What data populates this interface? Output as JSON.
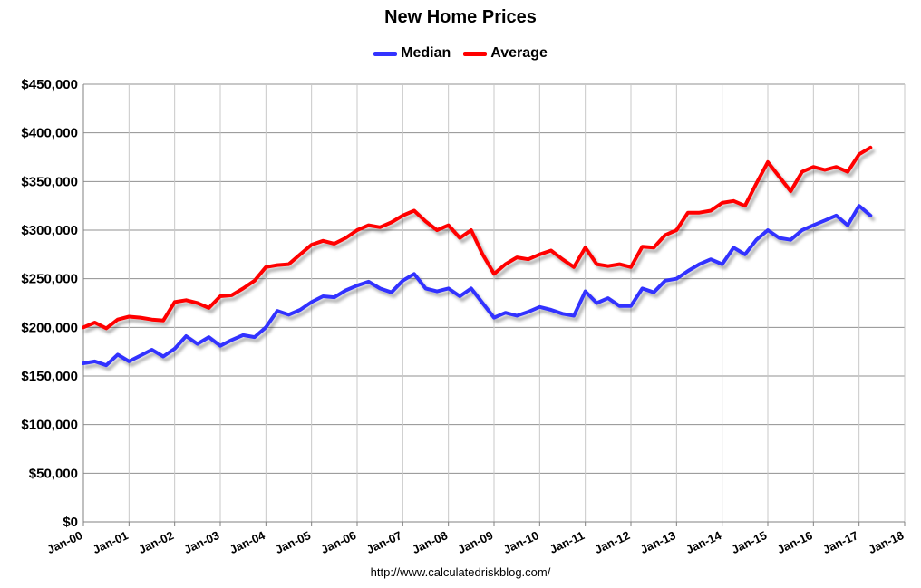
{
  "chart_data": {
    "type": "line",
    "title": "New Home Prices",
    "xlabel": "",
    "ylabel": "",
    "ylim": [
      0,
      450000
    ],
    "xlim": [
      "2000-01",
      "2018-01"
    ],
    "y_ticks": [
      0,
      50000,
      100000,
      150000,
      200000,
      250000,
      300000,
      350000,
      400000,
      450000
    ],
    "y_tick_labels": [
      "$0",
      "$50,000",
      "$100,000",
      "$150,000",
      "$200,000",
      "$250,000",
      "$300,000",
      "$350,000",
      "$400,000",
      "$450,000"
    ],
    "x_ticks": [
      "2000-01",
      "2001-01",
      "2002-01",
      "2003-01",
      "2004-01",
      "2005-01",
      "2006-01",
      "2007-01",
      "2008-01",
      "2009-01",
      "2010-01",
      "2011-01",
      "2012-01",
      "2013-01",
      "2014-01",
      "2015-01",
      "2016-01",
      "2017-01",
      "2018-01"
    ],
    "x_tick_labels": [
      "Jan-00",
      "Jan-01",
      "Jan-02",
      "Jan-03",
      "Jan-04",
      "Jan-05",
      "Jan-06",
      "Jan-07",
      "Jan-08",
      "Jan-09",
      "Jan-10",
      "Jan-11",
      "Jan-12",
      "Jan-13",
      "Jan-14",
      "Jan-15",
      "Jan-16",
      "Jan-17",
      "Jan-18"
    ],
    "grid": true,
    "legend": "top-center",
    "series": [
      {
        "name": "Median",
        "color": "#3333ff",
        "points": [
          [
            "2000-01",
            163000
          ],
          [
            "2000-04",
            165000
          ],
          [
            "2000-07",
            161000
          ],
          [
            "2000-10",
            172000
          ],
          [
            "2001-01",
            165000
          ],
          [
            "2001-04",
            171000
          ],
          [
            "2001-07",
            177000
          ],
          [
            "2001-10",
            170000
          ],
          [
            "2002-01",
            178000
          ],
          [
            "2002-04",
            191000
          ],
          [
            "2002-07",
            183000
          ],
          [
            "2002-10",
            190000
          ],
          [
            "2003-01",
            181000
          ],
          [
            "2003-04",
            187000
          ],
          [
            "2003-07",
            192000
          ],
          [
            "2003-10",
            190000
          ],
          [
            "2004-01",
            200000
          ],
          [
            "2004-04",
            217000
          ],
          [
            "2004-07",
            213000
          ],
          [
            "2004-10",
            218000
          ],
          [
            "2005-01",
            226000
          ],
          [
            "2005-04",
            232000
          ],
          [
            "2005-07",
            231000
          ],
          [
            "2005-10",
            238000
          ],
          [
            "2006-01",
            243000
          ],
          [
            "2006-04",
            247000
          ],
          [
            "2006-07",
            240000
          ],
          [
            "2006-10",
            236000
          ],
          [
            "2007-01",
            248000
          ],
          [
            "2007-04",
            255000
          ],
          [
            "2007-07",
            240000
          ],
          [
            "2007-10",
            237000
          ],
          [
            "2008-01",
            240000
          ],
          [
            "2008-04",
            232000
          ],
          [
            "2008-07",
            240000
          ],
          [
            "2008-10",
            225000
          ],
          [
            "2009-01",
            210000
          ],
          [
            "2009-04",
            215000
          ],
          [
            "2009-07",
            212000
          ],
          [
            "2009-10",
            216000
          ],
          [
            "2010-01",
            221000
          ],
          [
            "2010-04",
            218000
          ],
          [
            "2010-07",
            214000
          ],
          [
            "2010-10",
            212000
          ],
          [
            "2011-01",
            237000
          ],
          [
            "2011-04",
            225000
          ],
          [
            "2011-07",
            230000
          ],
          [
            "2011-10",
            222000
          ],
          [
            "2012-01",
            222000
          ],
          [
            "2012-04",
            240000
          ],
          [
            "2012-07",
            236000
          ],
          [
            "2012-10",
            248000
          ],
          [
            "2013-01",
            250000
          ],
          [
            "2013-04",
            258000
          ],
          [
            "2013-07",
            265000
          ],
          [
            "2013-10",
            270000
          ],
          [
            "2014-01",
            265000
          ],
          [
            "2014-04",
            282000
          ],
          [
            "2014-07",
            275000
          ],
          [
            "2014-10",
            290000
          ],
          [
            "2015-01",
            300000
          ],
          [
            "2015-04",
            292000
          ],
          [
            "2015-07",
            290000
          ],
          [
            "2015-10",
            300000
          ],
          [
            "2016-01",
            305000
          ],
          [
            "2016-04",
            310000
          ],
          [
            "2016-07",
            315000
          ],
          [
            "2016-10",
            305000
          ],
          [
            "2017-01",
            325000
          ],
          [
            "2017-04",
            315000
          ]
        ]
      },
      {
        "name": "Average",
        "color": "#ff0000",
        "points": [
          [
            "2000-01",
            200000
          ],
          [
            "2000-04",
            205000
          ],
          [
            "2000-07",
            199000
          ],
          [
            "2000-10",
            208000
          ],
          [
            "2001-01",
            211000
          ],
          [
            "2001-04",
            210000
          ],
          [
            "2001-07",
            208000
          ],
          [
            "2001-10",
            207000
          ],
          [
            "2002-01",
            226000
          ],
          [
            "2002-04",
            228000
          ],
          [
            "2002-07",
            225000
          ],
          [
            "2002-10",
            220000
          ],
          [
            "2003-01",
            232000
          ],
          [
            "2003-04",
            233000
          ],
          [
            "2003-07",
            240000
          ],
          [
            "2003-10",
            248000
          ],
          [
            "2004-01",
            262000
          ],
          [
            "2004-04",
            264000
          ],
          [
            "2004-07",
            265000
          ],
          [
            "2004-10",
            275000
          ],
          [
            "2005-01",
            285000
          ],
          [
            "2005-04",
            289000
          ],
          [
            "2005-07",
            286000
          ],
          [
            "2005-10",
            292000
          ],
          [
            "2006-01",
            300000
          ],
          [
            "2006-04",
            305000
          ],
          [
            "2006-07",
            303000
          ],
          [
            "2006-10",
            308000
          ],
          [
            "2007-01",
            315000
          ],
          [
            "2007-04",
            320000
          ],
          [
            "2007-07",
            309000
          ],
          [
            "2007-10",
            300000
          ],
          [
            "2008-01",
            305000
          ],
          [
            "2008-04",
            292000
          ],
          [
            "2008-07",
            300000
          ],
          [
            "2008-10",
            275000
          ],
          [
            "2009-01",
            255000
          ],
          [
            "2009-04",
            265000
          ],
          [
            "2009-07",
            272000
          ],
          [
            "2009-10",
            270000
          ],
          [
            "2010-01",
            275000
          ],
          [
            "2010-04",
            279000
          ],
          [
            "2010-07",
            270000
          ],
          [
            "2010-10",
            262000
          ],
          [
            "2011-01",
            282000
          ],
          [
            "2011-04",
            265000
          ],
          [
            "2011-07",
            263000
          ],
          [
            "2011-10",
            265000
          ],
          [
            "2012-01",
            262000
          ],
          [
            "2012-04",
            283000
          ],
          [
            "2012-07",
            282000
          ],
          [
            "2012-10",
            295000
          ],
          [
            "2013-01",
            300000
          ],
          [
            "2013-04",
            318000
          ],
          [
            "2013-07",
            318000
          ],
          [
            "2013-10",
            320000
          ],
          [
            "2014-01",
            328000
          ],
          [
            "2014-04",
            330000
          ],
          [
            "2014-07",
            325000
          ],
          [
            "2014-10",
            348000
          ],
          [
            "2015-01",
            370000
          ],
          [
            "2015-04",
            355000
          ],
          [
            "2015-07",
            340000
          ],
          [
            "2015-10",
            360000
          ],
          [
            "2016-01",
            365000
          ],
          [
            "2016-04",
            362000
          ],
          [
            "2016-07",
            365000
          ],
          [
            "2016-10",
            360000
          ],
          [
            "2017-01",
            378000
          ],
          [
            "2017-04",
            385000
          ]
        ]
      }
    ]
  },
  "source": "http://www.calculatedriskblog.com/"
}
